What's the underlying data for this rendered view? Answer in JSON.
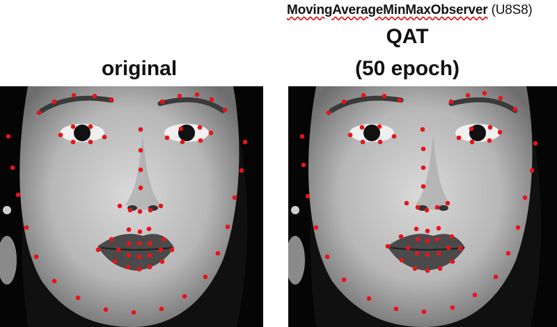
{
  "observer_label": {
    "main": "MovingAverageMinMaxObserver",
    "suffix": " (U8S8)"
  },
  "qat_title": "QAT",
  "qat_subtitle": "(50 epoch)",
  "original_title": "original",
  "landmark_color": "#e8141a",
  "left_panel_icon": "face-photo-icon",
  "right_panel_icon": "face-photo-icon"
}
